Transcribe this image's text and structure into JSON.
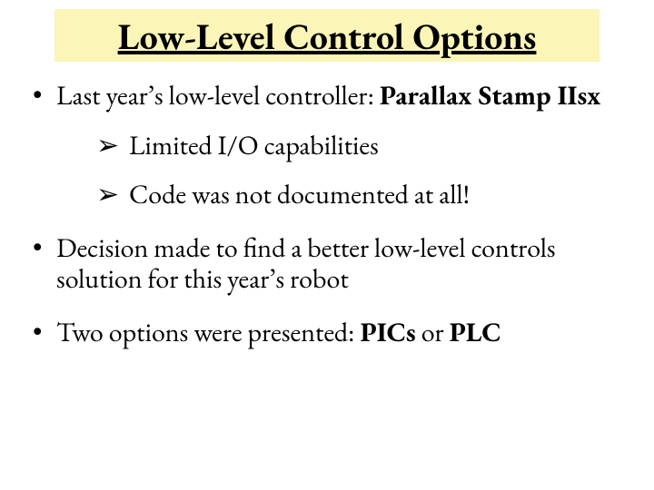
{
  "title": "Low-Level Control Options",
  "colors": {
    "title_bg": "#fbf5b7",
    "text": "#000000",
    "slide_bg": "#ffffff"
  },
  "font": {
    "family": "Garamond",
    "title_size_pt": 40,
    "body_size_pt": 30
  },
  "bullets": [
    {
      "runs": [
        {
          "t": "Last year’s low-level controller:  "
        },
        {
          "t": "Parallax Stamp IIsx",
          "bold": true
        }
      ],
      "sub": [
        "Limited I/O capabilities",
        "Code was not documented at all!"
      ]
    },
    {
      "runs": [
        {
          "t": "Decision made to find a better low-level controls solution for this year’s robot"
        }
      ]
    },
    {
      "runs": [
        {
          "t": "Two options were presented:  "
        },
        {
          "t": "PICs",
          "bold": true
        },
        {
          "t": " or "
        },
        {
          "t": "PLC",
          "bold": true
        }
      ]
    }
  ]
}
